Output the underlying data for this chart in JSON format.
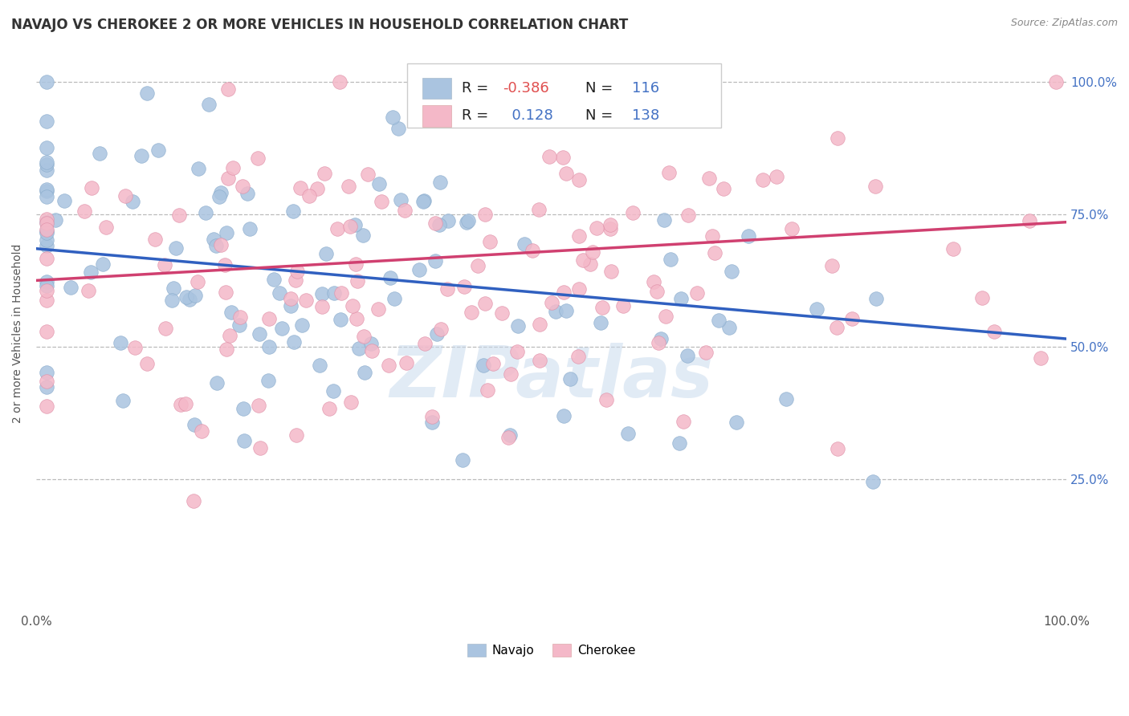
{
  "title": "NAVAJO VS CHEROKEE 2 OR MORE VEHICLES IN HOUSEHOLD CORRELATION CHART",
  "source": "Source: ZipAtlas.com",
  "ylabel": "2 or more Vehicles in Household",
  "xlim": [
    0.0,
    1.0
  ],
  "ylim": [
    0.0,
    1.05
  ],
  "navajo_color": "#aac4e0",
  "cherokee_color": "#f4b8c8",
  "navajo_R": -0.386,
  "navajo_N": 116,
  "cherokee_R": 0.128,
  "cherokee_N": 138,
  "navajo_line_color": "#3060c0",
  "cherokee_line_color": "#d04070",
  "navajo_line_start": 0.685,
  "navajo_line_end": 0.515,
  "cherokee_line_start": 0.625,
  "cherokee_line_end": 0.735,
  "background_color": "#ffffff",
  "grid_color": "#bbbbbb",
  "watermark": "ZIPatlas",
  "title_fontsize": 12,
  "label_fontsize": 10,
  "tick_fontsize": 11,
  "legend_fontsize": 13,
  "r_value_color": "#4472c4",
  "n_value_color": "#4472c4",
  "r_neg_color": "#e05050"
}
